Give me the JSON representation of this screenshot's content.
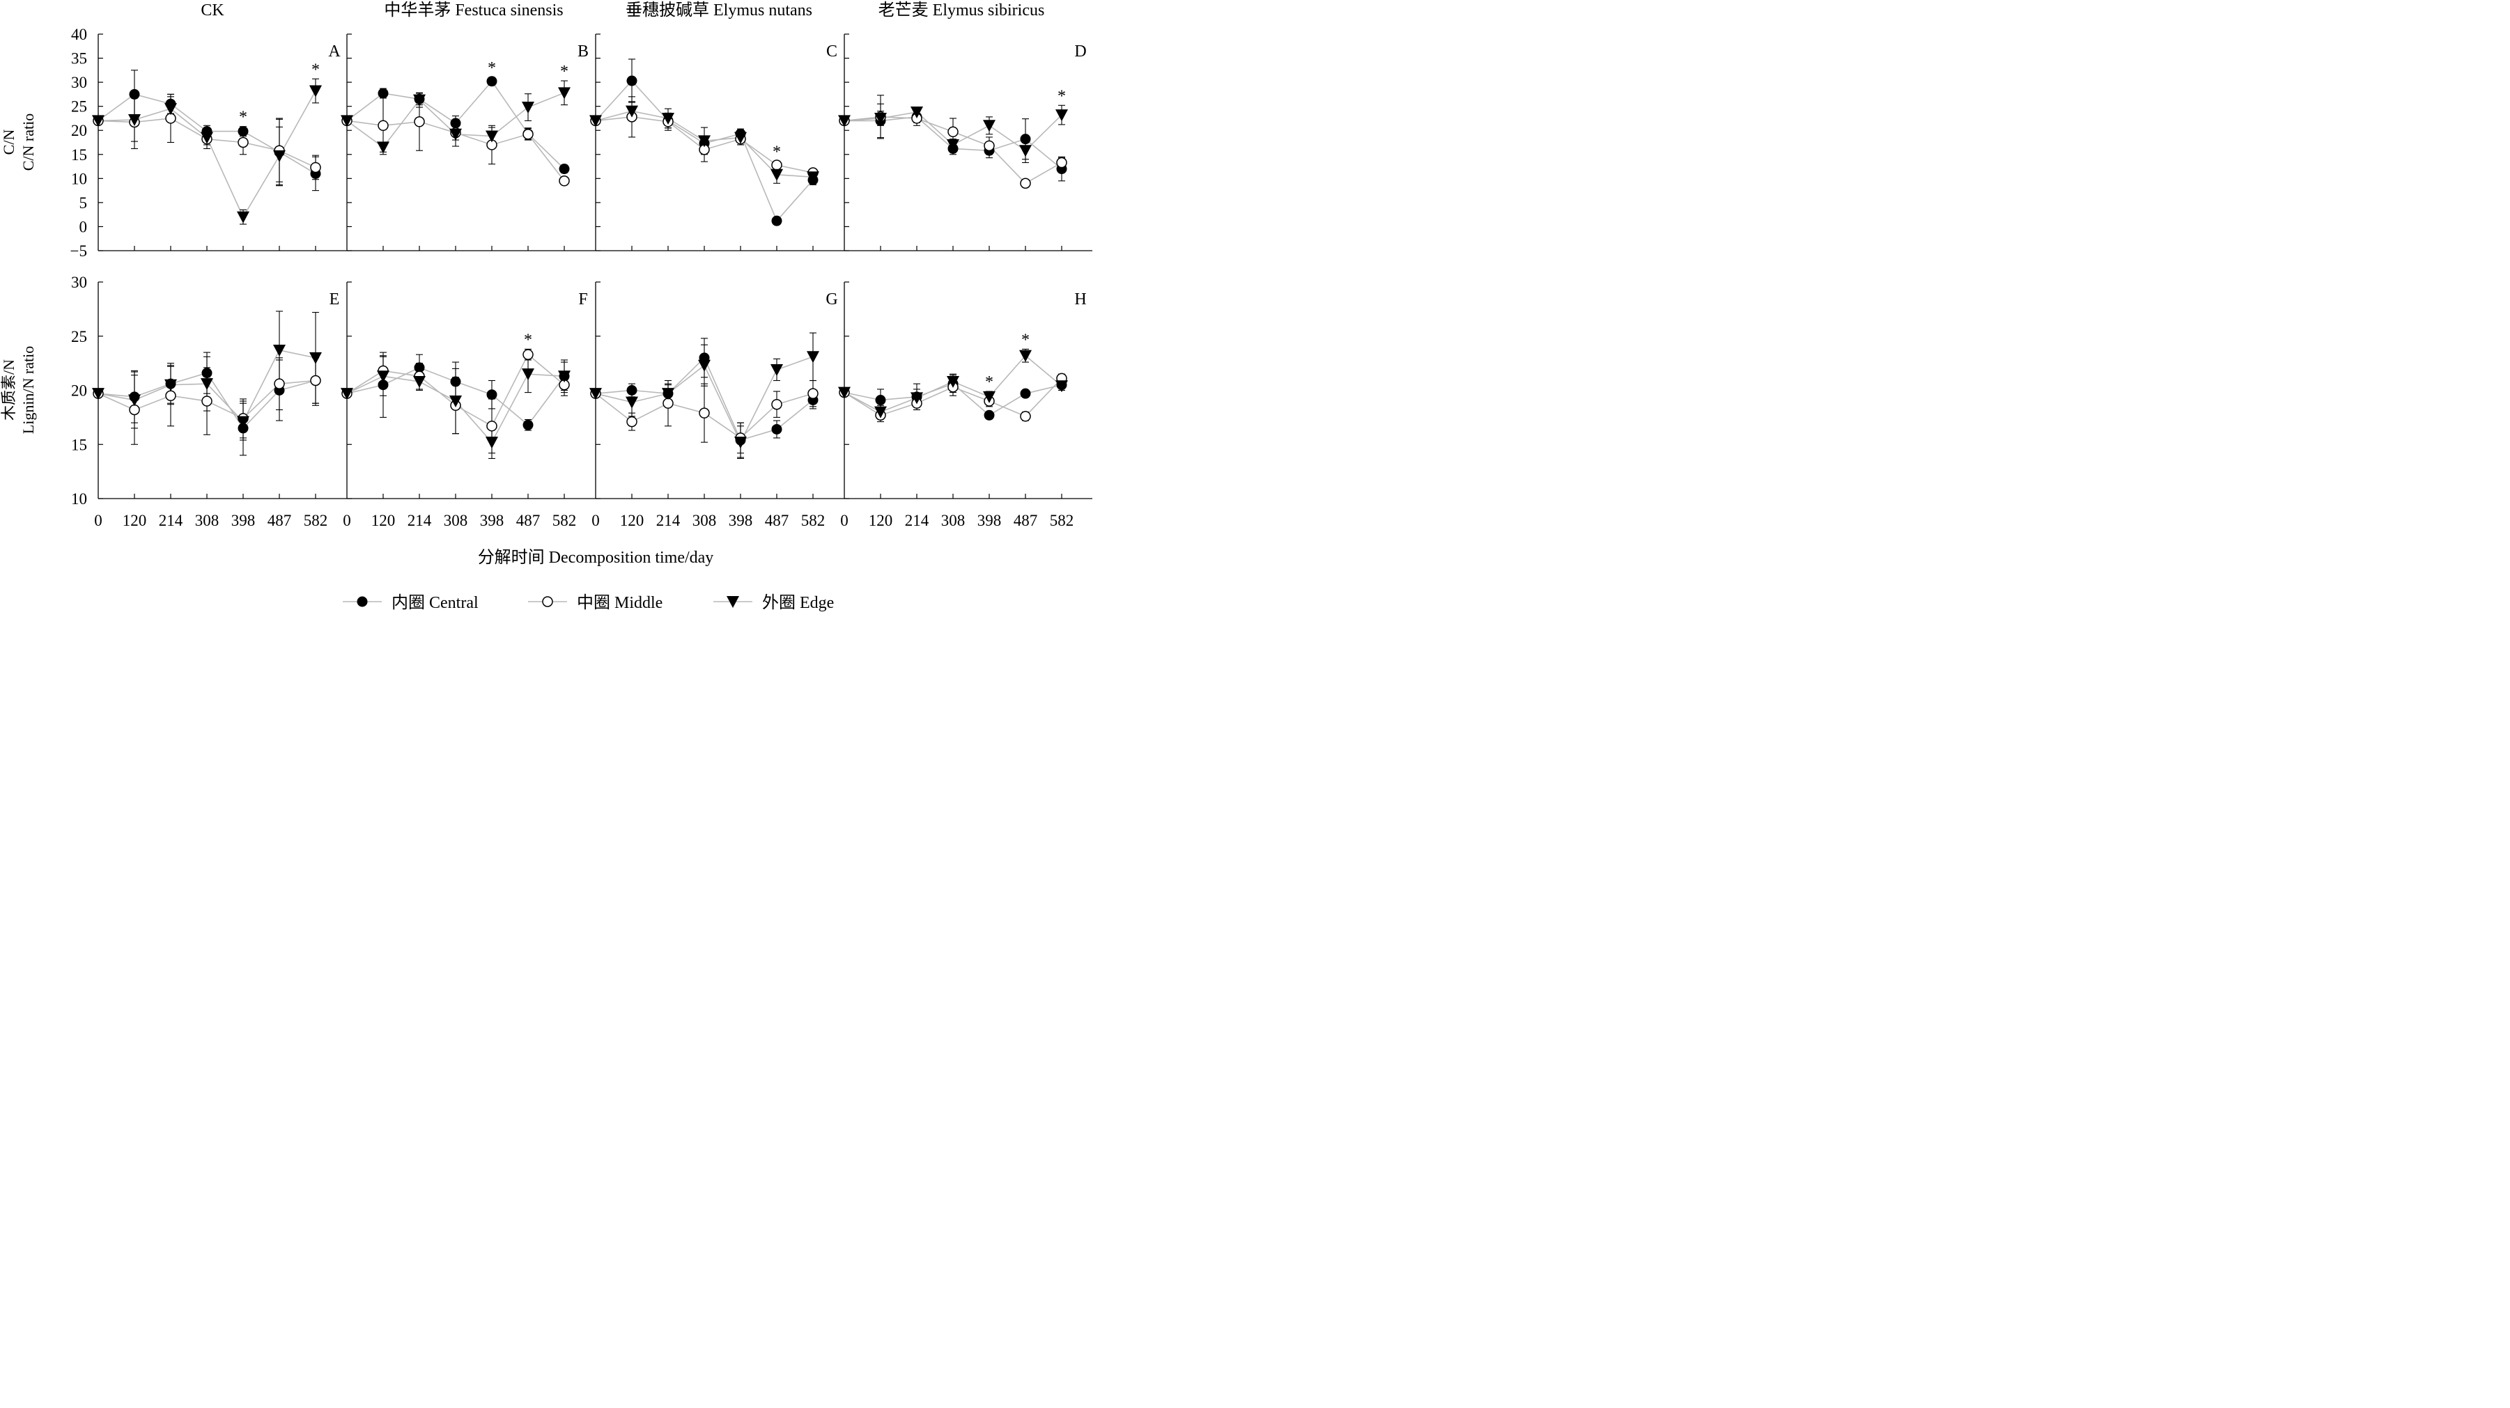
{
  "figure": {
    "x_axis_title": "分解时间  Decomposition time/day",
    "row_titles": [
      {
        "lines": [
          "C/N",
          "C/N ratio"
        ]
      },
      {
        "lines": [
          "木质素/N",
          "Lignin/N ratio"
        ]
      }
    ],
    "column_titles": [
      "CK",
      "中华羊茅 Festuca sinensis",
      "垂穗披碱草 Elymus nutans",
      "老芒麦 Elymus sibiricus"
    ],
    "legend": [
      {
        "marker": "filled-circle",
        "label": "内圈 Central"
      },
      {
        "marker": "open-circle",
        "label": "中圈 Middle"
      },
      {
        "marker": "filled-triangle-down",
        "label": "外圈 Edge"
      }
    ]
  },
  "chart_data": [
    {
      "type": "line",
      "panel": "A",
      "row": 0,
      "col": 0,
      "categories": [
        "0",
        "120",
        "214",
        "308",
        "398",
        "487",
        "582"
      ],
      "ylim": [
        -5,
        40
      ],
      "yticks": [
        -5,
        0,
        5,
        10,
        15,
        20,
        25,
        30,
        35,
        40
      ],
      "series": [
        {
          "name": "内圈 Central",
          "values": [
            22,
            27.5,
            25.5,
            19.8,
            19.8,
            15.5,
            11
          ],
          "err": [
            0.5,
            5,
            2,
            1.2,
            1,
            7,
            3.5
          ]
        },
        {
          "name": "中圈 Middle",
          "values": [
            22,
            21.7,
            22.5,
            18.2,
            17.5,
            15.8,
            12.3
          ],
          "err": [
            0.5,
            5.5,
            5,
            2,
            2.5,
            6.5,
            2.5
          ]
        },
        {
          "name": "外圈 Edge",
          "values": [
            22,
            22.2,
            24.5,
            18.5,
            2,
            14.7,
            28.2
          ],
          "err": [
            0.5,
            4.5,
            2.5,
            1.5,
            1.5,
            6,
            2.5
          ]
        }
      ],
      "annotations": [
        {
          "category": "398",
          "label": "*"
        },
        {
          "category": "582",
          "label": "*"
        }
      ]
    },
    {
      "type": "line",
      "panel": "B",
      "row": 0,
      "col": 1,
      "categories": [
        "0",
        "120",
        "214",
        "308",
        "398",
        "487",
        "582"
      ],
      "ylim": [
        -5,
        40
      ],
      "series": [
        {
          "name": "内圈 Central",
          "values": [
            22,
            27.7,
            26.5,
            21.5,
            30.2,
            19.3,
            12
          ],
          "err": [
            0.5,
            1,
            1.2,
            1.5,
            0.8,
            1.2,
            0.8
          ]
        },
        {
          "name": "中圈 Middle",
          "values": [
            22,
            21,
            21.8,
            19.5,
            17,
            19.2,
            9.5
          ],
          "err": [
            0.5,
            6,
            6,
            1.5,
            4,
            1.2,
            0.8
          ]
        },
        {
          "name": "外圈 Edge",
          "values": [
            22,
            16.5,
            26.3,
            19.2,
            18.8,
            24.8,
            27.8
          ],
          "err": [
            0.5,
            1,
            1.5,
            2.5,
            1.8,
            2.8,
            2.5
          ]
        }
      ],
      "annotations": [
        {
          "category": "398",
          "label": "*"
        },
        {
          "category": "582",
          "label": "*"
        }
      ]
    },
    {
      "type": "line",
      "panel": "C",
      "row": 0,
      "col": 2,
      "categories": [
        "0",
        "120",
        "214",
        "308",
        "398",
        "487",
        "582"
      ],
      "ylim": [
        -5,
        40
      ],
      "series": [
        {
          "name": "内圈 Central",
          "values": [
            22,
            30.3,
            22,
            17.3,
            19.3,
            1.2,
            9.7
          ],
          "err": [
            0.5,
            4.5,
            1.5,
            1.2,
            1,
            0.5,
            1
          ]
        },
        {
          "name": "中圈 Middle",
          "values": [
            22,
            22.8,
            21.8,
            16,
            18.2,
            12.8,
            11.2
          ],
          "err": [
            0.5,
            4.2,
            1.8,
            2.5,
            1.2,
            0.8,
            0.8
          ]
        },
        {
          "name": "外圈 Edge",
          "values": [
            22,
            24,
            22.5,
            17.8,
            18.5,
            10.8,
            10.3
          ],
          "err": [
            0.5,
            2,
            2,
            2.8,
            1.5,
            1.8,
            1.2
          ]
        }
      ],
      "annotations": [
        {
          "category": "487",
          "label": "*"
        }
      ]
    },
    {
      "type": "line",
      "panel": "D",
      "row": 0,
      "col": 3,
      "categories": [
        "0",
        "120",
        "214",
        "308",
        "398",
        "487",
        "582"
      ],
      "ylim": [
        -5,
        40
      ],
      "series": [
        {
          "name": "内圈 Central",
          "values": [
            22,
            22,
            22.8,
            16.2,
            15.8,
            18.2,
            12
          ],
          "err": [
            0.5,
            3.5,
            1.2,
            1.2,
            1.5,
            4.2,
            2.5
          ]
        },
        {
          "name": "中圈 Middle",
          "values": [
            22,
            22.8,
            22.5,
            19.7,
            16.8,
            9,
            13.3
          ],
          "err": [
            0.5,
            4.5,
            1.5,
            2.8,
            1.8,
            0.8,
            1
          ]
        },
        {
          "name": "外圈 Edge",
          "values": [
            22,
            22.5,
            23.8,
            17,
            21,
            15.8,
            23.2
          ],
          "err": [
            0.5,
            1.5,
            1,
            1.2,
            1.8,
            2.5,
            2
          ]
        }
      ],
      "annotations": [
        {
          "category": "582",
          "label": "*"
        }
      ]
    },
    {
      "type": "line",
      "panel": "E",
      "row": 1,
      "col": 0,
      "categories": [
        "0",
        "120",
        "214",
        "308",
        "398",
        "487",
        "582"
      ],
      "ylim": [
        10,
        30
      ],
      "yticks": [
        10,
        15,
        20,
        25,
        30
      ],
      "series": [
        {
          "name": "内圈 Central",
          "values": [
            19.7,
            19.4,
            20.6,
            21.6,
            16.5,
            20.0,
            20.9
          ],
          "err": [
            0.3,
            2.4,
            1.9,
            1.9,
            2.5,
            2.8,
            2.1
          ]
        },
        {
          "name": "中圈 Middle",
          "values": [
            19.7,
            18.2,
            19.5,
            19.0,
            17.4,
            20.6,
            20.9
          ],
          "err": [
            0.3,
            3.2,
            2.8,
            3.1,
            1.8,
            2.4,
            2.3
          ]
        },
        {
          "name": "外圈 Edge",
          "values": [
            19.7,
            19.1,
            20.5,
            20.6,
            17.1,
            23.7,
            23.0
          ],
          "err": [
            0.3,
            2.6,
            1.7,
            2.5,
            1.7,
            3.6,
            4.2
          ]
        }
      ],
      "annotations": []
    },
    {
      "type": "line",
      "panel": "F",
      "row": 1,
      "col": 1,
      "categories": [
        "0",
        "120",
        "214",
        "308",
        "398",
        "487",
        "582"
      ],
      "ylim": [
        10,
        30
      ],
      "series": [
        {
          "name": "内圈 Central",
          "values": [
            19.7,
            20.5,
            22.1,
            20.8,
            19.6,
            16.8,
            21.3
          ],
          "err": [
            0.3,
            3,
            1.2,
            1.8,
            1.3,
            0.5,
            1.5
          ]
        },
        {
          "name": "中圈 Middle",
          "values": [
            19.7,
            21.8,
            21.3,
            18.6,
            16.7,
            23.3,
            20.5
          ],
          "err": [
            0.3,
            1.4,
            1.2,
            2.6,
            2.5,
            0.5,
            1
          ]
        },
        {
          "name": "外圈 Edge",
          "values": [
            19.7,
            21.3,
            20.8,
            19.0,
            15.2,
            21.5,
            21.3
          ],
          "err": [
            0.3,
            1.8,
            0.8,
            3,
            1.5,
            1.7,
            1.3
          ]
        }
      ],
      "annotations": [
        {
          "category": "487",
          "label": "*"
        }
      ]
    },
    {
      "type": "line",
      "panel": "G",
      "row": 1,
      "col": 2,
      "categories": [
        "0",
        "120",
        "214",
        "308",
        "398",
        "487",
        "582"
      ],
      "ylim": [
        10,
        30
      ],
      "series": [
        {
          "name": "内圈 Central",
          "values": [
            19.7,
            20.0,
            19.7,
            23.0,
            15.4,
            16.4,
            19.1
          ],
          "err": [
            0.3,
            0.6,
            0.8,
            1.8,
            1.6,
            0.8,
            0.8
          ]
        },
        {
          "name": "中圈 Middle",
          "values": [
            19.7,
            17.1,
            18.8,
            17.9,
            15.6,
            18.7,
            19.7
          ],
          "err": [
            0.3,
            0.8,
            2.1,
            2.7,
            1.4,
            1.2,
            1.2
          ]
        },
        {
          "name": "外圈 Edge",
          "values": [
            19.7,
            18.9,
            19.7,
            22.3,
            15.2,
            21.9,
            23.1
          ],
          "err": [
            0.3,
            1.3,
            0.9,
            1.9,
            1.5,
            1.0,
            2.2
          ]
        }
      ],
      "annotations": []
    },
    {
      "type": "line",
      "panel": "H",
      "row": 1,
      "col": 3,
      "categories": [
        "0",
        "120",
        "214",
        "308",
        "398",
        "487",
        "582"
      ],
      "ylim": [
        10,
        30
      ],
      "series": [
        {
          "name": "内圈 Central",
          "values": [
            19.8,
            19.1,
            19.4,
            20.6,
            17.7,
            19.7,
            20.5
          ],
          "err": [
            0.3,
            1.0,
            1.2,
            0.8,
            0.3,
            0.3,
            0.5
          ]
        },
        {
          "name": "中圈 Middle",
          "values": [
            19.8,
            17.7,
            18.8,
            20.3,
            19.0,
            17.6,
            21.1
          ],
          "err": [
            0.3,
            0.6,
            0.6,
            0.8,
            0.5,
            0.4,
            0.4
          ]
        },
        {
          "name": "外圈 Edge",
          "values": [
            19.8,
            18.0,
            19.3,
            20.8,
            19.4,
            23.2,
            20.4
          ],
          "err": [
            0.3,
            0.6,
            0.8,
            0.7,
            0.5,
            0.6,
            0.4
          ]
        }
      ],
      "annotations": [
        {
          "category": "398",
          "label": "*"
        },
        {
          "category": "487",
          "label": "*"
        }
      ]
    }
  ]
}
